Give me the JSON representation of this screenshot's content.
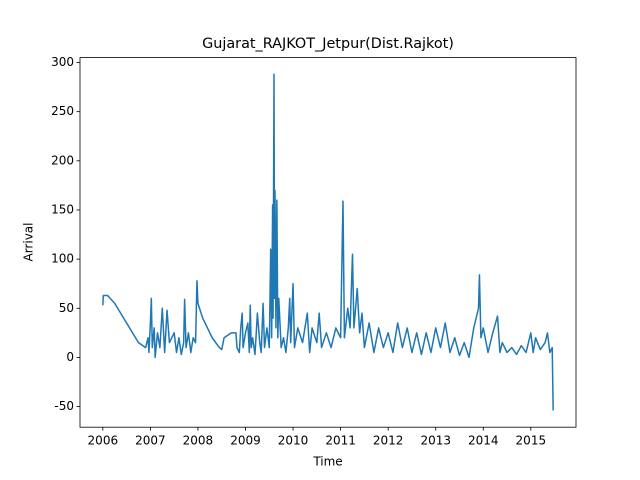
{
  "chart_data": {
    "type": "line",
    "title": "Gujarat_RAJKOT_Jetpur(Dist.Rajkot)",
    "x_label": "Time",
    "y_label": "Arrival",
    "xlim": [
      2005.52,
      2015.95
    ],
    "xticks": [
      2006,
      2007,
      2008,
      2009,
      2010,
      2011,
      2012,
      2013,
      2014,
      2015
    ],
    "ylim": [
      -71,
      305
    ],
    "yticks": [
      -50,
      0,
      50,
      100,
      150,
      200,
      250,
      300
    ],
    "series": [
      {
        "color": "#1f77b4",
        "x": [
          2006.0,
          2006.01,
          2006.1,
          2006.25,
          2006.5,
          2006.75,
          2006.9,
          2006.95,
          2006.97,
          2007.0,
          2007.02,
          2007.04,
          2007.08,
          2007.1,
          2007.15,
          2007.2,
          2007.25,
          2007.3,
          2007.35,
          2007.4,
          2007.5,
          2007.55,
          2007.6,
          2007.65,
          2007.7,
          2007.72,
          2007.75,
          2007.8,
          2007.85,
          2007.9,
          2007.95,
          2007.98,
          2008.0,
          2008.1,
          2008.3,
          2008.45,
          2008.5,
          2008.55,
          2008.7,
          2008.8,
          2008.82,
          2008.87,
          2008.9,
          2008.93,
          2008.95,
          2009.0,
          2009.05,
          2009.08,
          2009.1,
          2009.12,
          2009.15,
          2009.2,
          2009.25,
          2009.3,
          2009.33,
          2009.37,
          2009.4,
          2009.45,
          2009.5,
          2009.53,
          2009.55,
          2009.57,
          2009.58,
          2009.6,
          2009.61,
          2009.62,
          2009.64,
          2009.66,
          2009.68,
          2009.7,
          2009.75,
          2009.8,
          2009.85,
          2009.9,
          2009.93,
          2009.95,
          2010.0,
          2010.03,
          2010.1,
          2010.2,
          2010.3,
          2010.35,
          2010.4,
          2010.5,
          2010.55,
          2010.6,
          2010.7,
          2010.8,
          2010.9,
          2011.0,
          2011.05,
          2011.08,
          2011.15,
          2011.2,
          2011.25,
          2011.28,
          2011.35,
          2011.4,
          2011.45,
          2011.5,
          2011.6,
          2011.7,
          2011.8,
          2011.9,
          2012.0,
          2012.1,
          2012.2,
          2012.3,
          2012.4,
          2012.5,
          2012.6,
          2012.7,
          2012.8,
          2012.9,
          2013.0,
          2013.1,
          2013.2,
          2013.3,
          2013.4,
          2013.5,
          2013.6,
          2013.7,
          2013.8,
          2013.9,
          2013.92,
          2013.95,
          2014.0,
          2014.1,
          2014.2,
          2014.3,
          2014.35,
          2014.4,
          2014.5,
          2014.6,
          2014.7,
          2014.8,
          2014.9,
          2015.0,
          2015.05,
          2015.1,
          2015.2,
          2015.3,
          2015.35,
          2015.4,
          2015.45,
          2015.47
        ],
        "values": [
          53,
          63,
          63,
          55,
          35,
          15,
          10,
          20,
          5,
          35,
          60,
          10,
          30,
          0,
          25,
          10,
          50,
          5,
          48,
          15,
          25,
          5,
          20,
          3,
          15,
          59,
          10,
          25,
          5,
          20,
          15,
          78,
          55,
          40,
          20,
          10,
          8,
          20,
          25,
          25,
          10,
          5,
          30,
          45,
          10,
          25,
          35,
          5,
          53,
          10,
          20,
          3,
          45,
          15,
          5,
          55,
          10,
          30,
          10,
          110,
          20,
          155,
          40,
          288,
          60,
          170,
          30,
          160,
          20,
          60,
          10,
          20,
          5,
          30,
          60,
          15,
          75,
          10,
          30,
          15,
          45,
          5,
          30,
          15,
          45,
          10,
          25,
          10,
          30,
          20,
          159,
          20,
          50,
          30,
          105,
          30,
          70,
          25,
          45,
          10,
          35,
          5,
          30,
          10,
          25,
          5,
          35,
          10,
          30,
          5,
          25,
          3,
          25,
          5,
          30,
          10,
          35,
          5,
          20,
          2,
          15,
          0,
          30,
          50,
          84,
          20,
          30,
          5,
          25,
          42,
          5,
          15,
          5,
          10,
          3,
          12,
          5,
          25,
          5,
          20,
          8,
          15,
          25,
          5,
          10,
          -54
        ]
      }
    ]
  }
}
